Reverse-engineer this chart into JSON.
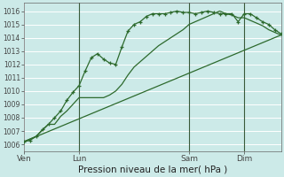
{
  "bg_color": "#cceae8",
  "plot_bg_color": "#cceae8",
  "grid_color": "#ffffff",
  "line_color": "#2d6a2d",
  "title": "Pression niveau de la mer( hPa )",
  "ylabel_values": [
    1006,
    1007,
    1008,
    1009,
    1010,
    1011,
    1012,
    1013,
    1014,
    1015,
    1016
  ],
  "ylim": [
    1005.5,
    1016.6
  ],
  "xlim": [
    0,
    84
  ],
  "xtick_positions": [
    0,
    18,
    54,
    72
  ],
  "xtick_labels": [
    "Ven",
    "Lun",
    "Sam",
    "Dim"
  ],
  "vlines": [
    18,
    54,
    72
  ],
  "line1_x": [
    0,
    2,
    4,
    6,
    8,
    10,
    12,
    14,
    16,
    18,
    20,
    22,
    24,
    26,
    28,
    30,
    32,
    34,
    36,
    38,
    40,
    42,
    44,
    46,
    48,
    50,
    52,
    54,
    56,
    58,
    60,
    62,
    64,
    66,
    68,
    70,
    72,
    74,
    76,
    78,
    80,
    82,
    84
  ],
  "line1_y": [
    1006.2,
    1006.3,
    1006.6,
    1007.1,
    1007.5,
    1008.0,
    1008.5,
    1009.3,
    1009.9,
    1010.4,
    1011.5,
    1012.5,
    1012.8,
    1012.4,
    1012.1,
    1012.0,
    1013.3,
    1014.5,
    1015.0,
    1015.2,
    1015.6,
    1015.8,
    1015.8,
    1015.8,
    1015.9,
    1016.0,
    1015.9,
    1015.9,
    1015.8,
    1015.9,
    1016.0,
    1015.9,
    1015.8,
    1015.8,
    1015.8,
    1015.2,
    1015.8,
    1015.8,
    1015.5,
    1015.2,
    1015.0,
    1014.6,
    1014.3
  ],
  "line2_x": [
    0,
    4,
    8,
    10,
    12,
    14,
    16,
    18,
    20,
    22,
    24,
    26,
    28,
    30,
    32,
    34,
    36,
    38,
    40,
    42,
    44,
    46,
    48,
    50,
    52,
    54,
    56,
    58,
    60,
    62,
    64,
    66,
    68,
    70,
    72,
    74,
    76,
    78,
    80,
    84
  ],
  "line2_y": [
    1006.2,
    1006.6,
    1007.5,
    1007.5,
    1008.1,
    1008.5,
    1009.0,
    1009.5,
    1009.5,
    1009.5,
    1009.5,
    1009.5,
    1009.7,
    1010.0,
    1010.5,
    1011.2,
    1011.8,
    1012.2,
    1012.6,
    1013.0,
    1013.4,
    1013.7,
    1014.0,
    1014.3,
    1014.6,
    1015.0,
    1015.2,
    1015.4,
    1015.6,
    1015.8,
    1016.0,
    1015.8,
    1015.7,
    1015.5,
    1015.5,
    1015.3,
    1015.1,
    1014.9,
    1014.6,
    1014.2
  ],
  "line3_x": [
    0,
    84
  ],
  "line3_y": [
    1006.2,
    1014.2
  ]
}
